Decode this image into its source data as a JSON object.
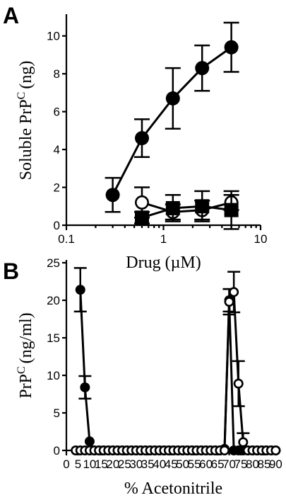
{
  "panels": {
    "a_letter": "A",
    "b_letter": "B"
  },
  "chart_data": [
    {
      "type": "line",
      "panel": "A",
      "xlabel": "Drug (µM)",
      "ylabel": "Soluble PrP",
      "ylabel_sup": "C",
      "ylabel_unit": "(ng)",
      "xscale": "log",
      "xlim": [
        0.1,
        10
      ],
      "ylim": [
        0,
        11
      ],
      "x_ticks": [
        0.1,
        1,
        10
      ],
      "x_tick_labels": [
        "0.1",
        "1",
        "10"
      ],
      "y_ticks": [
        0,
        2,
        4,
        6,
        8,
        10
      ],
      "y_tick_labels": [
        "0",
        "2",
        "4",
        "6",
        "8",
        "10"
      ],
      "grid": false,
      "series": [
        {
          "marker": "filled-circle",
          "x": [
            0.3,
            0.6,
            1.25,
            2.5,
            5.0
          ],
          "y": [
            1.6,
            4.6,
            6.7,
            8.3,
            9.4
          ],
          "err": [
            0.9,
            1.0,
            1.6,
            1.2,
            1.3
          ]
        },
        {
          "marker": "open-circle",
          "x": [
            0.6,
            1.25,
            2.5,
            5.0
          ],
          "y": [
            1.2,
            0.7,
            0.8,
            1.2
          ],
          "err": [
            0.8,
            0.4,
            0.5,
            0.4
          ]
        },
        {
          "marker": "filled-square",
          "x": [
            0.6,
            1.25,
            2.5,
            5.0
          ],
          "y": [
            0.4,
            0.9,
            1.0,
            0.8
          ],
          "err": [
            0.3,
            0.7,
            0.8,
            1.0
          ]
        }
      ]
    },
    {
      "type": "line",
      "panel": "B",
      "xlabel": "% Acetonitrile",
      "ylabel": "PrP",
      "ylabel_sup": "C",
      "ylabel_unit": "(ng/ml)",
      "xlim": [
        0,
        92
      ],
      "ylim": [
        0,
        25
      ],
      "x_ticks": [
        0,
        5,
        10,
        15,
        20,
        25,
        30,
        35,
        40,
        45,
        50,
        55,
        60,
        65,
        70,
        75,
        80,
        85,
        90
      ],
      "x_tick_labels": [
        "0",
        "5",
        "10",
        "15",
        "20",
        "25",
        "30",
        "35",
        "40",
        "45",
        "50",
        "55",
        "60",
        "65",
        "70",
        "75",
        "80",
        "85",
        "90"
      ],
      "y_ticks": [
        0,
        5,
        10,
        15,
        20,
        25
      ],
      "y_tick_labels": [
        "0",
        "5",
        "10",
        "15",
        "20",
        "25"
      ],
      "grid": false,
      "series": [
        {
          "marker": "filled-circle",
          "x": [
            6,
            8,
            10,
            12,
            14,
            16,
            18,
            20,
            22,
            24,
            26,
            28,
            30,
            32,
            34,
            36,
            38,
            40,
            42,
            44,
            46,
            48,
            50,
            52,
            54,
            56,
            58,
            60,
            62,
            64,
            66,
            68,
            70,
            72,
            74,
            76,
            78,
            80,
            82,
            84,
            86,
            88,
            90
          ],
          "y": [
            21.4,
            8.4,
            1.2,
            0,
            0,
            0,
            0,
            0,
            0,
            0,
            0,
            0,
            0,
            0,
            0,
            0,
            0,
            0,
            0,
            0,
            0,
            0,
            0,
            0,
            0,
            0,
            0,
            0,
            0,
            0,
            0,
            0.2,
            20,
            0,
            0,
            0,
            0,
            0,
            0,
            0,
            0,
            0,
            0
          ],
          "err": [
            2.9,
            1.5,
            0,
            0,
            0,
            0,
            0,
            0,
            0,
            0,
            0,
            0,
            0,
            0,
            0,
            0,
            0,
            0,
            0,
            0,
            0,
            0,
            0,
            0,
            0,
            0,
            0,
            0,
            0,
            0,
            0,
            0,
            1.5,
            0,
            0,
            0,
            0,
            0,
            0,
            0,
            0,
            0,
            0
          ]
        },
        {
          "marker": "open-circle",
          "x": [
            4,
            6,
            8,
            10,
            12,
            14,
            16,
            18,
            20,
            22,
            24,
            26,
            28,
            30,
            32,
            34,
            36,
            38,
            40,
            42,
            44,
            46,
            48,
            50,
            52,
            54,
            56,
            58,
            60,
            62,
            64,
            66,
            68,
            70,
            72,
            74,
            76,
            78,
            80,
            82,
            84,
            86,
            88,
            90
          ],
          "y": [
            0,
            0,
            0,
            0,
            0,
            0,
            0,
            0,
            0,
            0,
            0,
            0,
            0,
            0,
            0,
            0,
            0,
            0,
            0,
            0,
            0,
            0,
            0,
            0,
            0,
            0,
            0,
            0,
            0,
            0,
            0,
            0,
            0,
            19.8,
            21.1,
            8.9,
            1.1,
            0,
            0,
            0,
            0,
            0,
            0,
            0
          ],
          "err": [
            0,
            0,
            0,
            0,
            0,
            0,
            0,
            0,
            0,
            0,
            0,
            0,
            0,
            0,
            0,
            0,
            0,
            0,
            0,
            0,
            0,
            0,
            0,
            0,
            0,
            0,
            0,
            0,
            0,
            0,
            0,
            0,
            0,
            1.7,
            2.7,
            3.0,
            1.2,
            0,
            0,
            0,
            0,
            0,
            0,
            0
          ]
        }
      ]
    }
  ]
}
